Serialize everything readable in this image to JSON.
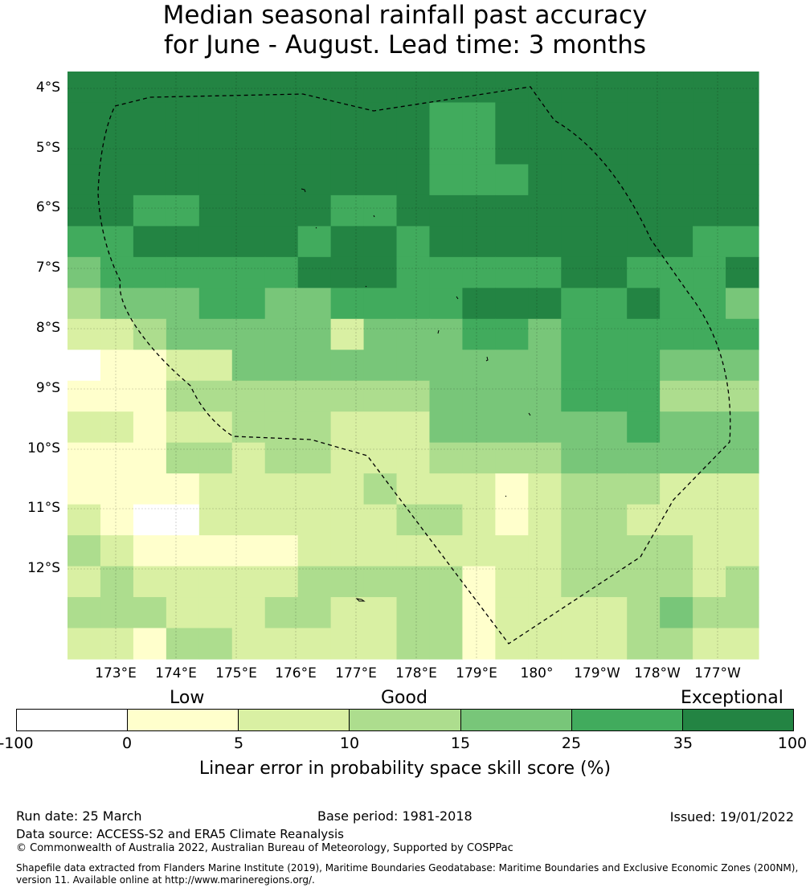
{
  "title": {
    "line1": "Median seasonal rainfall past accuracy",
    "line2": "for June - August. Lead time: 3 months"
  },
  "map": {
    "lat_labels": [
      "4°S",
      "5°S",
      "6°S",
      "7°S",
      "8°S",
      "9°S",
      "10°S",
      "11°S",
      "12°S"
    ],
    "lon_labels": [
      "173°E",
      "174°E",
      "175°E",
      "176°E",
      "177°E",
      "178°E",
      "179°E",
      "180°",
      "179°W",
      "178°W",
      "177°W"
    ],
    "outline": "dashed EEZ boundary",
    "grid": true,
    "grid_skill_classes": [
      [
        6,
        6,
        6,
        6,
        6,
        6,
        6,
        6,
        6,
        6,
        6,
        6,
        6,
        6,
        6,
        6,
        6,
        6,
        6,
        6,
        6
      ],
      [
        6,
        6,
        6,
        6,
        6,
        6,
        6,
        6,
        6,
        6,
        6,
        5,
        5,
        6,
        6,
        6,
        6,
        6,
        6,
        6,
        6
      ],
      [
        6,
        6,
        6,
        6,
        6,
        6,
        6,
        6,
        6,
        6,
        6,
        5,
        5,
        6,
        6,
        6,
        6,
        6,
        6,
        6,
        6
      ],
      [
        6,
        6,
        6,
        6,
        6,
        6,
        6,
        6,
        6,
        6,
        6,
        5,
        5,
        5,
        6,
        6,
        6,
        6,
        6,
        6,
        6
      ],
      [
        6,
        6,
        5,
        5,
        6,
        6,
        6,
        6,
        5,
        5,
        6,
        6,
        6,
        6,
        6,
        6,
        6,
        6,
        6,
        6,
        6
      ],
      [
        5,
        5,
        6,
        6,
        6,
        6,
        6,
        5,
        6,
        6,
        5,
        6,
        6,
        6,
        6,
        6,
        6,
        6,
        6,
        5,
        5
      ],
      [
        4,
        5,
        5,
        5,
        5,
        5,
        5,
        6,
        6,
        6,
        5,
        5,
        5,
        5,
        5,
        6,
        6,
        5,
        5,
        5,
        6
      ],
      [
        3,
        4,
        4,
        4,
        5,
        5,
        4,
        4,
        5,
        5,
        5,
        5,
        6,
        6,
        6,
        5,
        5,
        6,
        5,
        5,
        4
      ],
      [
        2,
        2,
        3,
        4,
        4,
        4,
        4,
        4,
        2,
        4,
        4,
        4,
        5,
        5,
        4,
        5,
        5,
        5,
        5,
        5,
        5
      ],
      [
        0,
        1,
        1,
        2,
        2,
        4,
        4,
        4,
        4,
        4,
        4,
        4,
        4,
        4,
        4,
        5,
        5,
        5,
        4,
        4,
        4
      ],
      [
        1,
        1,
        1,
        3,
        3,
        3,
        3,
        3,
        3,
        3,
        3,
        4,
        4,
        4,
        4,
        5,
        5,
        5,
        3,
        3,
        3
      ],
      [
        2,
        2,
        1,
        2,
        2,
        3,
        3,
        3,
        2,
        2,
        2,
        4,
        4,
        4,
        4,
        4,
        4,
        5,
        4,
        4,
        4
      ],
      [
        1,
        1,
        1,
        3,
        3,
        2,
        3,
        3,
        2,
        2,
        2,
        3,
        3,
        3,
        3,
        4,
        4,
        4,
        4,
        4,
        4
      ],
      [
        1,
        1,
        1,
        1,
        2,
        2,
        2,
        2,
        2,
        3,
        2,
        2,
        2,
        1,
        2,
        3,
        3,
        3,
        2,
        2,
        2
      ],
      [
        2,
        1,
        0,
        0,
        2,
        2,
        2,
        2,
        2,
        2,
        3,
        3,
        2,
        1,
        2,
        3,
        3,
        2,
        2,
        2,
        2
      ],
      [
        3,
        2,
        1,
        1,
        1,
        1,
        1,
        2,
        2,
        2,
        2,
        2,
        2,
        2,
        2,
        3,
        3,
        3,
        3,
        2,
        2
      ],
      [
        2,
        3,
        2,
        2,
        2,
        2,
        2,
        3,
        3,
        3,
        3,
        3,
        1,
        2,
        2,
        3,
        3,
        3,
        3,
        2,
        3
      ],
      [
        3,
        3,
        3,
        2,
        2,
        2,
        3,
        3,
        2,
        2,
        3,
        3,
        1,
        2,
        2,
        2,
        2,
        3,
        4,
        3,
        3
      ],
      [
        2,
        2,
        1,
        3,
        3,
        2,
        2,
        2,
        2,
        2,
        3,
        3,
        1,
        2,
        2,
        2,
        2,
        3,
        3,
        2,
        2
      ]
    ]
  },
  "legend": {
    "category_labels": [
      "Low",
      "Good",
      "Exceptional"
    ],
    "tick_labels": [
      "-100",
      "0",
      "5",
      "10",
      "15",
      "25",
      "35",
      "100"
    ],
    "classes": [
      {
        "range": "-100 to 0",
        "color": "#ffffff"
      },
      {
        "range": "0 to 5",
        "color": "#ffffcc"
      },
      {
        "range": "5 to 10",
        "color": "#d9f0a3"
      },
      {
        "range": "10 to 15",
        "color": "#addd8e"
      },
      {
        "range": "15 to 25",
        "color": "#78c679"
      },
      {
        "range": "25 to 35",
        "color": "#41ab5d"
      },
      {
        "range": "35 to 100",
        "color": "#238443"
      }
    ],
    "caption": "Linear error in probability space skill score (%)"
  },
  "footer": {
    "run_date": "Run date: 25 March",
    "base_period": "Base period: 1981-2018",
    "issued": "Issued: 19/01/2022",
    "data_source": "Data source: ACCESS-S2 and ERA5 Climate Reanalysis",
    "copyright": "© Commonwealth of Australia 2022, Australian Bureau of Meteorology, Supported by COSPPac",
    "shapefile_line1": "Shapefile data extracted from Flanders Marine Institute (2019), Maritime Boundaries Geodatabase: Maritime Boundaries and Exclusive Economic Zones (200NM),",
    "shapefile_line2": "version 11. Available online at http://www.marineregions.org/."
  }
}
